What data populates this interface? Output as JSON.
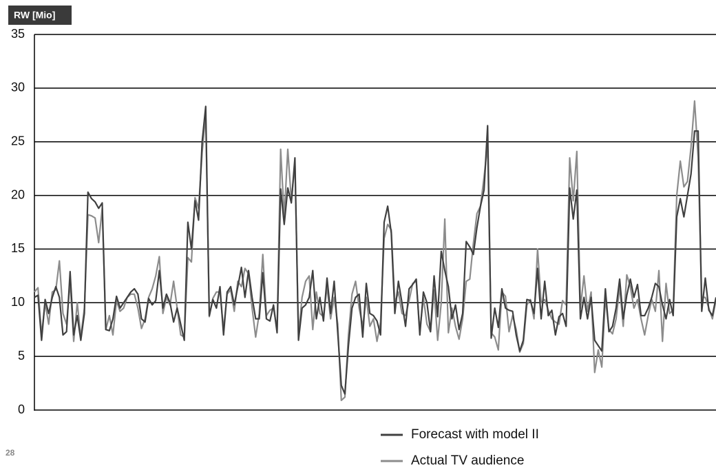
{
  "chart_data": {
    "type": "line",
    "y_label": "RW [Mio]",
    "ylim": [
      0,
      35
    ],
    "yticks": [
      0,
      5,
      10,
      15,
      20,
      25,
      30,
      35
    ],
    "grid": true,
    "legend": "bottom",
    "series": [
      {
        "name": "Forecast with model II",
        "color": "#404040",
        "values": [
          10.5,
          10.7,
          6.5,
          10.3,
          9,
          10.5,
          11.5,
          10.5,
          7,
          7.3,
          12.9,
          7,
          8.8,
          6.5,
          9,
          20.3,
          19.7,
          19.4,
          18.8,
          19.3,
          7.5,
          7.4,
          8.5,
          10.6,
          9.5,
          10,
          10.5,
          11,
          11.3,
          10.8,
          8.5,
          8.2,
          10.4,
          9.8,
          10.2,
          13,
          9.5,
          10.8,
          10,
          8.2,
          9.5,
          8,
          6.5,
          17.5,
          15,
          19.5,
          17.7,
          25,
          28.3,
          8.8,
          10.3,
          9.5,
          11.5,
          7,
          11,
          11.5,
          9.8,
          11.5,
          13.3,
          10.5,
          13,
          10.5,
          8.5,
          8.5,
          12.8,
          8.5,
          8.3,
          9.8,
          7.2,
          20.6,
          17.3,
          20.7,
          19.3,
          23.5,
          6.5,
          9.5,
          9.8,
          10.5,
          13,
          8.5,
          10.5,
          8.3,
          12.3,
          9,
          12,
          7.2,
          2.3,
          1.5,
          6,
          9.5,
          10.5,
          10.8,
          6.8,
          11.8,
          9,
          8.8,
          8.3,
          7,
          17.5,
          19,
          16.5,
          9,
          12,
          10,
          7.8,
          11.3,
          11.7,
          12.2,
          7,
          11,
          10,
          7.3,
          12.5,
          8.7,
          14.8,
          13,
          11.5,
          8.5,
          9.8,
          7.5,
          9,
          15.7,
          15.2,
          14.5,
          17,
          19,
          20.5,
          26.5,
          6.7,
          9.5,
          7.7,
          11.3,
          9.5,
          9.3,
          9.2,
          7,
          5.5,
          6.5,
          10.3,
          10.2,
          9,
          13.2,
          8.5,
          12,
          8.8,
          9.3,
          7,
          8.7,
          9,
          7.8,
          20.7,
          17.8,
          20.5,
          8.5,
          10.5,
          8.5,
          10.5,
          6.5,
          6,
          5.5,
          11.3,
          7.3,
          7.8,
          9.5,
          12.2,
          8.5,
          10.7,
          12.2,
          10.5,
          11.7,
          8.8,
          8.8,
          9.5,
          10.5,
          11.8,
          11.5,
          9.8,
          8.5,
          10.3,
          8.8,
          18,
          19.7,
          18,
          20,
          22,
          26,
          26,
          9.2,
          12.3,
          9.3,
          8.8,
          10.5
        ]
      },
      {
        "name": "Actual TV audience",
        "color": "#8c8c8c",
        "values": [
          11,
          11.4,
          7,
          10,
          8,
          11,
          11.2,
          13.9,
          9,
          8,
          12,
          6.4,
          10,
          6.8,
          9.5,
          18.2,
          18.1,
          17.9,
          15.6,
          18.8,
          7.5,
          8.8,
          7,
          10.2,
          9.2,
          9.5,
          10.5,
          10.8,
          10.8,
          9.5,
          7.6,
          8.5,
          10.5,
          11.3,
          12.5,
          14.3,
          9,
          10.5,
          9.8,
          12,
          9.5,
          7,
          6.8,
          14.2,
          13.8,
          19.8,
          18.8,
          24,
          27.6,
          8.7,
          10.4,
          11,
          11,
          7.5,
          10.8,
          11.2,
          9.2,
          12,
          11.5,
          13.2,
          12.7,
          9.5,
          6.8,
          9,
          14.5,
          8.8,
          9.3,
          9.5,
          7.5,
          24.3,
          18,
          24.3,
          19.5,
          23,
          7,
          10.5,
          12,
          12.5,
          7.5,
          11,
          9,
          8.7,
          11.5,
          8.5,
          10.5,
          8,
          0.9,
          1.2,
          7,
          10.8,
          12,
          9.5,
          7.8,
          10.5,
          7.8,
          8.5,
          6.4,
          8.2,
          16,
          17.3,
          16.8,
          10,
          11,
          9,
          8.8,
          10.2,
          11.8,
          12,
          7.3,
          10.5,
          8,
          7.3,
          11.2,
          6.5,
          10,
          17.8,
          7.2,
          9.5,
          7.8,
          6.6,
          8.5,
          12,
          12.2,
          15.5,
          18.3,
          19,
          21.7,
          24.7,
          7.2,
          6.8,
          5.6,
          11,
          10.6,
          7.3,
          8.8,
          7.5,
          5.4,
          6.2,
          9.8,
          10.3,
          8.5,
          15,
          10,
          10.3,
          9.3,
          8.5,
          8.2,
          8,
          10.2,
          9.8,
          23.5,
          19.5,
          24.1,
          9.5,
          12.5,
          9.2,
          11,
          3.5,
          5.6,
          4,
          10.5,
          7.5,
          7.1,
          8.5,
          11.5,
          7.8,
          12.6,
          11.5,
          9.5,
          10.3,
          8.5,
          7,
          8.8,
          10.3,
          9.2,
          13,
          6.4,
          11.8,
          9,
          9.3,
          20,
          23.2,
          20.8,
          21.3,
          24.5,
          28.8,
          23.5,
          10.5,
          10.5,
          9.5,
          8.5,
          10.3
        ]
      }
    ]
  },
  "footer": {
    "page_number": "28"
  }
}
